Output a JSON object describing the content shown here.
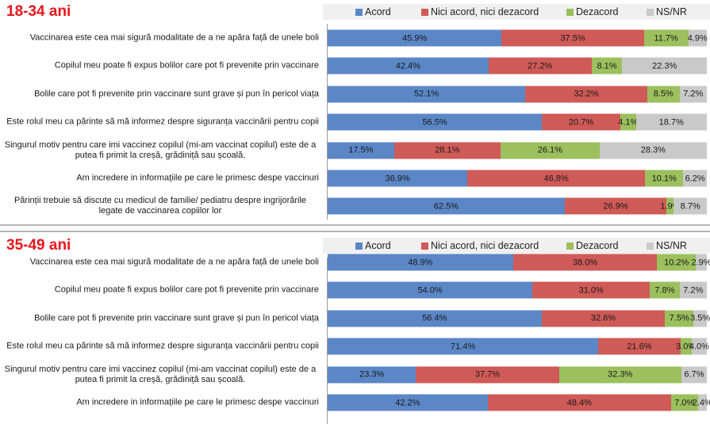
{
  "colors": {
    "acord": "#5b87c7",
    "neutru": "#cf5a57",
    "dezacord": "#9bc05d",
    "nsnr": "#c9c9c9",
    "title": "#e8141c"
  },
  "chart_data": [
    {
      "type": "bar",
      "orientation": "horizontal",
      "stacked": "percent",
      "title": "18-34 ani",
      "legend": [
        "Acord",
        "Nici acord, nici dezacord",
        "Dezacord",
        "NS/NR"
      ],
      "legend_position": "top",
      "xlim": [
        0,
        100
      ],
      "categories": [
        "Vaccinarea este cea mai sigură modalitate de a ne apăra față de unele boli",
        "Copilul meu poate fi  expus  bolilor care pot fi prevenite prin vaccinare",
        "Bolile care pot fi prevenite prin vaccinare sunt grave și pun în pericol viața",
        "Este rolul meu ca părinte să mă informez despre siguranța vaccinării pentru copii",
        "Singurul motiv pentru care imi vaccinez copilul (mi-am vaccinat copilul) este  de a putea fi primit  la creșă, grădiniță sau școală.",
        "Am incredere in informațiile pe care le primesc despe vaccinuri",
        "Părinții trebuie să discute cu medicul de familie/ pediatru despre ingrijorările legate de vaccinarea copiilor lor"
      ],
      "series": [
        {
          "name": "Acord",
          "values": [
            45.9,
            42.4,
            52.1,
            56.5,
            17.5,
            36.9,
            62.5
          ]
        },
        {
          "name": "Nici acord, nici dezacord",
          "values": [
            37.5,
            27.2,
            32.2,
            20.7,
            28.1,
            46.8,
            26.9
          ]
        },
        {
          "name": "Dezacord",
          "values": [
            11.7,
            8.1,
            8.5,
            4.1,
            26.1,
            10.1,
            1.9
          ]
        },
        {
          "name": "NS/NR",
          "values": [
            4.9,
            22.3,
            7.2,
            18.7,
            28.3,
            6.2,
            8.7
          ]
        }
      ]
    },
    {
      "type": "bar",
      "orientation": "horizontal",
      "stacked": "percent",
      "title": "35-49 ani",
      "legend": [
        "Acord",
        "Nici acord, nici dezacord",
        "Dezacord",
        "NS/NR"
      ],
      "legend_position": "top",
      "xlim": [
        0,
        100
      ],
      "categories": [
        "Vaccinarea este cea mai sigură modalitate de a ne apăra față de unele boli",
        "Copilul meu poate fi  expus  bolilor care pot fi prevenite prin vaccinare",
        "Bolile care pot fi prevenite prin vaccinare sunt grave și pun în pericol viața",
        "Este rolul meu ca părinte să mă informez despre siguranța vaccinării pentru copii",
        "Singurul motiv pentru care imi vaccinez copilul (mi-am vaccinat copilul) este  de a putea fi primit  la creșă, grădiniță sau școală.",
        "Am incredere in informațiile pe care le primesc despe vaccinuri"
      ],
      "series": [
        {
          "name": "Acord",
          "values": [
            48.9,
            54.0,
            56.4,
            71.4,
            23.3,
            42.2
          ]
        },
        {
          "name": "Nici acord, nici dezacord",
          "values": [
            38.0,
            31.0,
            32.6,
            21.6,
            37.7,
            48.4
          ]
        },
        {
          "name": "Dezacord",
          "values": [
            10.2,
            7.8,
            7.5,
            3.0,
            32.3,
            7.0
          ]
        },
        {
          "name": "NS/NR",
          "values": [
            2.9,
            7.2,
            3.5,
            4.0,
            6.7,
            2.4
          ]
        }
      ]
    }
  ],
  "label_lines": [
    [
      [
        "Vaccinarea este cea mai sigură modalitate de a ne apăra față de unele boli"
      ],
      [
        "Copilul meu poate fi  expus  bolilor care pot fi prevenite prin vaccinare"
      ],
      [
        "Bolile care pot fi prevenite prin vaccinare sunt grave și pun în pericol viața"
      ],
      [
        "Este rolul meu ca părinte să mă informez despre siguranța vaccinării pentru copii"
      ],
      [
        "Singurul motiv pentru care imi vaccinez copilul (mi-am vaccinat copilul) este  de a",
        "putea fi primit  la creșă, grădiniță sau școală."
      ],
      [
        "Am incredere in informațiile pe care le primesc despe vaccinuri"
      ],
      [
        "Părinții trebuie să discute cu medicul de familie/ pediatru despre ingrijorările",
        "legate de vaccinarea copiilor lor"
      ]
    ],
    [
      [
        "Vaccinarea este cea mai sigură modalitate de a ne apăra față de unele boli"
      ],
      [
        "Copilul meu poate fi  expus  bolilor care pot fi prevenite prin vaccinare"
      ],
      [
        "Bolile care pot fi prevenite prin vaccinare sunt grave și pun în pericol viața"
      ],
      [
        "Este rolul meu ca părinte să mă informez despre siguranța vaccinării pentru copii"
      ],
      [
        "Singurul motiv pentru care imi vaccinez copilul (mi-am vaccinat copilul) este  de a",
        "putea fi primit  la creșă, grădiniță sau școală."
      ],
      [
        "Am incredere in informațiile pe care le primesc despe vaccinuri"
      ]
    ]
  ]
}
